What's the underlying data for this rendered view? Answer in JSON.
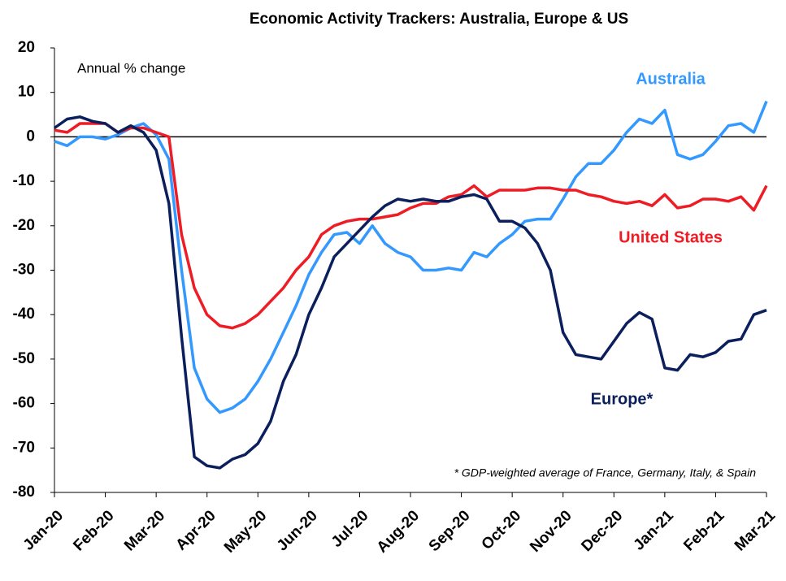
{
  "chart_data": {
    "type": "line",
    "title": "Economic Activity Trackers: Australia, Europe & US",
    "annotations": [
      "Annual % change",
      "* GDP-weighted average of France, Germany, Italy, & Spain"
    ],
    "categories": [
      "Jan-20",
      null,
      null,
      null,
      "Feb-20",
      null,
      null,
      null,
      "Mar-20",
      null,
      null,
      null,
      "Apr-20",
      null,
      null,
      null,
      "May-20",
      null,
      null,
      null,
      "Jun-20",
      null,
      null,
      null,
      "Jul-20",
      null,
      null,
      null,
      "Aug-20",
      null,
      null,
      null,
      "Sep-20",
      null,
      null,
      null,
      "Oct-20",
      null,
      null,
      null,
      "Nov-20",
      null,
      null,
      null,
      "Dec-20",
      null,
      null,
      null,
      "Jan-21",
      null,
      null,
      null,
      "Feb-21",
      null,
      null,
      null,
      "Mar-21"
    ],
    "series": [
      {
        "name": "Australia",
        "color": "#3399ff",
        "values": [
          -1,
          -2,
          0,
          0,
          -0.5,
          0.5,
          2,
          3,
          0.5,
          -5,
          -30,
          -52,
          -59,
          -62,
          -61,
          -59,
          -55,
          -50,
          -44,
          -38,
          -31,
          -26,
          -22,
          -21.5,
          -24,
          -20,
          -24,
          -26,
          -27,
          -30,
          -30,
          -29.5,
          -30,
          -26,
          -27,
          -24,
          -22,
          -19,
          -18.5,
          -18.5,
          -14,
          -9,
          -6,
          -6,
          -3,
          1,
          4,
          3,
          6,
          -4,
          -5,
          -4,
          -1,
          2.5,
          3,
          1,
          8
        ]
      },
      {
        "name": "United States",
        "color": "#ee1c25",
        "values": [
          1.5,
          1,
          3,
          3,
          3,
          1,
          2,
          2,
          1,
          0,
          -22,
          -34,
          -40,
          -42.5,
          -43,
          -42,
          -40,
          -37,
          -34,
          -30,
          -27,
          -22,
          -20,
          -19,
          -18.5,
          -18.5,
          -18,
          -17.5,
          -16,
          -15,
          -15,
          -13.5,
          -13,
          -11,
          -13.5,
          -12,
          -12,
          -12,
          -11.5,
          -11.5,
          -12,
          -12,
          -13,
          -13.5,
          -14.5,
          -15,
          -14.5,
          -15.5,
          -13,
          -16,
          -15.5,
          -14,
          -14,
          -14.5,
          -13.5,
          -16.5,
          -11
        ]
      },
      {
        "name": "Europe*",
        "color": "#0b1f5c",
        "values": [
          2,
          4,
          4.5,
          3.5,
          3,
          1,
          2.5,
          1,
          -3,
          -15,
          -45,
          -72,
          -74,
          -74.5,
          -72.5,
          -71.5,
          -69,
          -64,
          -55,
          -49,
          -40,
          -34,
          -27,
          -24,
          -21,
          -18,
          -15.5,
          -14,
          -14.5,
          -14,
          -14.5,
          -14.5,
          -13.5,
          -13,
          -14,
          -19,
          -19,
          -20.5,
          -24,
          -30,
          -44,
          -49,
          -49.5,
          -50,
          -46,
          -42,
          -39.5,
          -41,
          -52,
          -52.5,
          -49,
          -49.5,
          -48.5,
          -46,
          -45.5,
          -40,
          -39
        ]
      }
    ],
    "ylim": [
      -80,
      20
    ],
    "yticks": [
      20,
      10,
      0,
      -10,
      -20,
      -30,
      -40,
      -50,
      -60,
      -70,
      -80
    ]
  }
}
